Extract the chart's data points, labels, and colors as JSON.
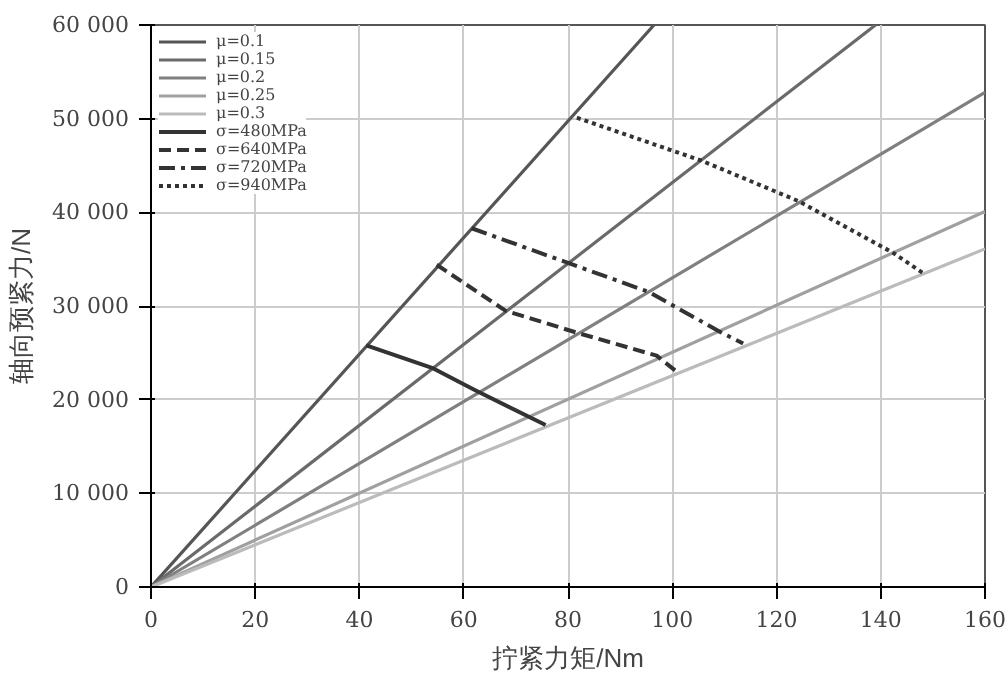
{
  "chart_data": {
    "type": "line",
    "xlabel": "拧紧力矩/Nm",
    "ylabel": "轴向预紧力/N",
    "xlim": [
      0,
      160
    ],
    "xticks": [
      0,
      20,
      40,
      60,
      80,
      100,
      120,
      140,
      160
    ],
    "ylim": [
      0,
      60000
    ],
    "yticks": [
      0,
      {
        "value": 10000,
        "label": "10 000"
      },
      {
        "value": 20000,
        "label": "20 000"
      },
      {
        "value": 30000,
        "label": "30 000"
      },
      {
        "value": 40000,
        "label": "40 000"
      },
      {
        "value": 50000,
        "label": "50 000"
      },
      {
        "value": 60000,
        "label": "60 000"
      }
    ],
    "grid": true,
    "legend": "top left",
    "marker": "none",
    "series": [
      {
        "name": "μ=0.1",
        "color": "#555555",
        "line_style": "solid",
        "x": [
          0,
          96.5
        ],
        "values": [
          0,
          60000
        ]
      },
      {
        "name": "μ=0.15",
        "color": "#6a6a6a",
        "line_style": "solid",
        "x": [
          0,
          139
        ],
        "values": [
          0,
          60000
        ]
      },
      {
        "name": "μ=0.2",
        "color": "#808080",
        "line_style": "solid",
        "x": [
          0,
          160
        ],
        "values": [
          0,
          52800
        ]
      },
      {
        "name": "μ=0.25",
        "color": "#a0a0a0",
        "line_style": "solid",
        "x": [
          0,
          160
        ],
        "values": [
          0,
          40100
        ]
      },
      {
        "name": "μ=0.3",
        "color": "#bbbbbb",
        "line_style": "solid",
        "x": [
          0,
          160
        ],
        "values": [
          0,
          36100
        ]
      },
      {
        "name": "σ=480MPa",
        "color": "#333333",
        "line_style": "solid",
        "x": [
          41.3,
          53.9,
          62.2,
          75.7
        ],
        "values": [
          25800,
          23400,
          21000,
          17300
        ]
      },
      {
        "name": "σ=640MPa",
        "color": "#333333",
        "line_style": "dashed",
        "x": [
          54.8,
          68,
          82,
          97,
          100.6
        ],
        "values": [
          34400,
          29500,
          27100,
          24700,
          23100
        ]
      },
      {
        "name": "σ=720MPa",
        "color": "#333333",
        "line_style": "dashdot",
        "x": [
          61.5,
          80,
          95.5,
          109.3,
          113.6
        ],
        "values": [
          38300,
          34600,
          31500,
          27200,
          26000
        ]
      },
      {
        "name": "σ=940MPa",
        "color": "#333333",
        "line_style": "dotted",
        "x": [
          81.7,
          105.7,
          124.2,
          142.3,
          148.4
        ],
        "values": [
          50100,
          45500,
          41200,
          35700,
          33400
        ]
      }
    ]
  }
}
